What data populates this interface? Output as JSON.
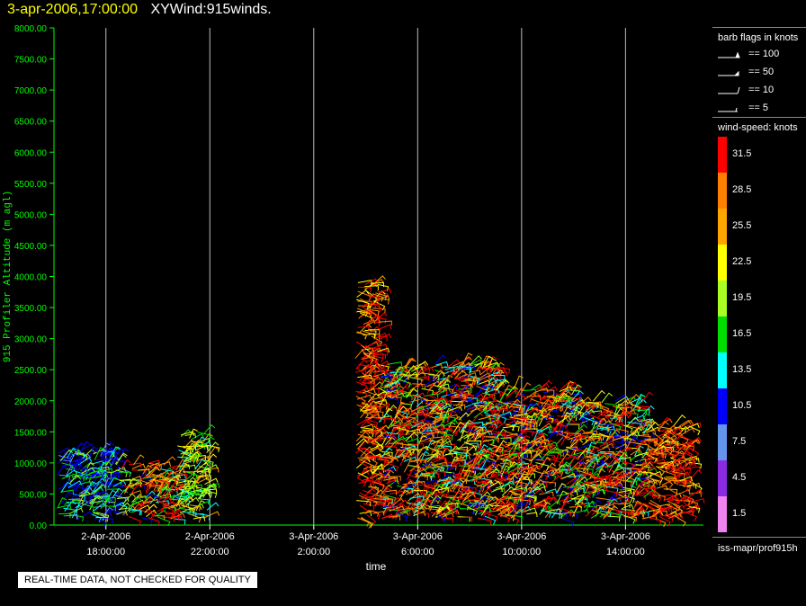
{
  "header": {
    "time": "3-apr-2006,17:00:00",
    "title": "XYWind:915winds.",
    "time_color": "#ffff00"
  },
  "legend": {
    "flags_title": "barb flags in knots",
    "flags": [
      "== 100",
      "== 50",
      "== 10",
      "== 5"
    ],
    "speed_title": "wind-speed: knots",
    "speed_levels": [
      {
        "label": "31.5",
        "color": "#ff0000"
      },
      {
        "label": "28.5",
        "color": "#ff7f00"
      },
      {
        "label": "25.5",
        "color": "#ffa500"
      },
      {
        "label": "22.5",
        "color": "#ffff00"
      },
      {
        "label": "19.5",
        "color": "#aaff22"
      },
      {
        "label": "16.5",
        "color": "#00e000"
      },
      {
        "label": "13.5",
        "color": "#00ffff"
      },
      {
        "label": "10.5",
        "color": "#0000ff"
      },
      {
        "label": "7.5",
        "color": "#6495ed"
      },
      {
        "label": "4.5",
        "color": "#8a2be2"
      },
      {
        "label": "1.5",
        "color": "#ee82ee"
      }
    ],
    "source": "iss-mapr/prof915h"
  },
  "footer": {
    "notice": "REAL-TIME DATA, NOT CHECKED FOR QUALITY"
  },
  "chart_data": {
    "type": "scatter",
    "mark": "wind barbs",
    "xlabel": "time",
    "ylabel": "915 Profiler Altitude (m agl)",
    "ylim": [
      0,
      8000
    ],
    "xlim": [
      "2-Apr-2006 16:00",
      "3-Apr-2006 17:00"
    ],
    "y_ticks": [
      "0.00",
      "500.00",
      "1000.00",
      "1500.00",
      "2000.00",
      "2500.00",
      "3000.00",
      "3500.00",
      "4000.00",
      "4500.00",
      "5000.00",
      "5500.00",
      "6000.00",
      "6500.00",
      "7000.00",
      "7500.00",
      "8000.00"
    ],
    "x_ticks": [
      {
        "date": "2-Apr-2006",
        "time": "18:00:00",
        "hour": 2
      },
      {
        "date": "2-Apr-2006",
        "time": "22:00:00",
        "hour": 6
      },
      {
        "date": "3-Apr-2006",
        "time": "2:00:00",
        "hour": 10
      },
      {
        "date": "3-Apr-2006",
        "time": "6:00:00",
        "hour": 14
      },
      {
        "date": "3-Apr-2006",
        "time": "10:00:00",
        "hour": 18
      },
      {
        "date": "3-Apr-2006",
        "time": "14:00:00",
        "hour": 22
      }
    ],
    "grid": "vertical",
    "ylabel_color": "#00ff00",
    "axis_color": "#00ff00",
    "segments": [
      {
        "x_start": 0.1,
        "x_end": 2.5,
        "y_max": 1200,
        "speed": "low"
      },
      {
        "x_start": 2.5,
        "x_end": 4.7,
        "y_max": 1000,
        "speed": "mixed"
      },
      {
        "x_start": 4.7,
        "x_end": 5.9,
        "y_max": 1500,
        "speed": "mid"
      },
      {
        "x_start": 11.6,
        "x_end": 12.5,
        "y_max": 3900,
        "speed": "high"
      },
      {
        "x_start": 12.5,
        "x_end": 17.0,
        "y_max": 2600,
        "speed": "mixed"
      },
      {
        "x_start": 17.0,
        "x_end": 20.0,
        "y_max": 2200,
        "speed": "mixed"
      },
      {
        "x_start": 20.0,
        "x_end": 22.7,
        "y_max": 2000,
        "speed": "mixed"
      },
      {
        "x_start": 22.7,
        "x_end": 24.5,
        "y_max": 1600,
        "speed": "high"
      }
    ]
  }
}
